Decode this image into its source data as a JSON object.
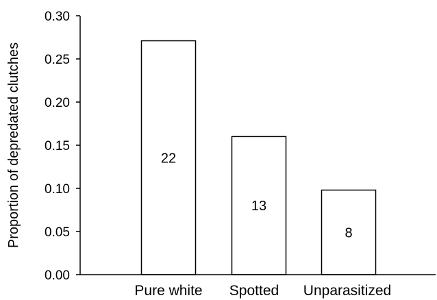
{
  "chart_data": {
    "type": "bar",
    "categories": [
      "Pure white",
      "Spotted",
      "Unparasitized"
    ],
    "values": [
      0.271,
      0.16,
      0.098
    ],
    "bar_labels": [
      "22",
      "13",
      "8"
    ],
    "title": "",
    "xlabel": "",
    "ylabel": "Proportion of depredated clutches",
    "ylim": [
      0,
      0.3
    ],
    "yticks": [
      "0.00",
      "0.05",
      "0.10",
      "0.15",
      "0.20",
      "0.25",
      "0.30"
    ],
    "bar_fill": "#ffffff",
    "bar_stroke": "#000000",
    "grid": false
  }
}
